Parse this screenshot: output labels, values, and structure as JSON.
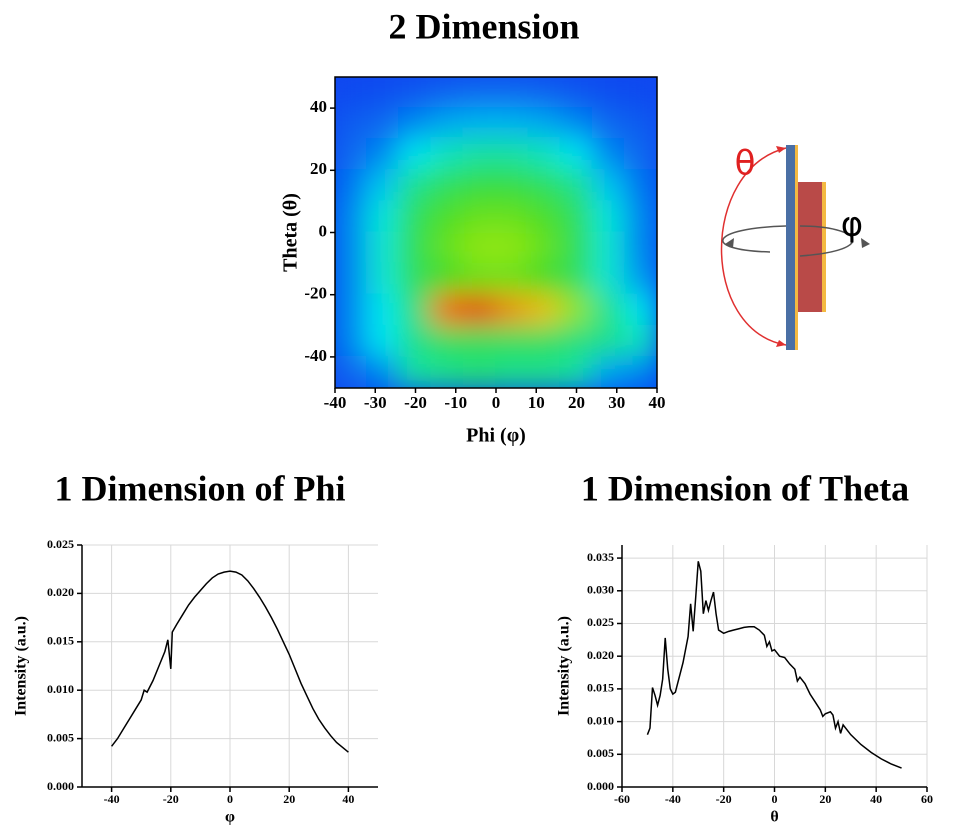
{
  "chart_data": [
    {
      "type": "heatmap",
      "title": "2 Dimension",
      "x_label": "Phi (φ)",
      "y_label": "Theta (θ)",
      "x": [
        -36,
        -28,
        -20,
        -12,
        -4,
        4,
        12,
        20,
        28,
        36
      ],
      "y": [
        45,
        35,
        25,
        15,
        5,
        -5,
        -15,
        -25,
        -35,
        -45
      ],
      "z": [
        [
          0.05,
          0.06,
          0.07,
          0.09,
          0.1,
          0.1,
          0.09,
          0.07,
          0.06,
          0.05
        ],
        [
          0.08,
          0.1,
          0.15,
          0.2,
          0.22,
          0.22,
          0.2,
          0.15,
          0.1,
          0.08
        ],
        [
          0.1,
          0.15,
          0.3,
          0.35,
          0.38,
          0.38,
          0.35,
          0.3,
          0.15,
          0.1
        ],
        [
          0.12,
          0.25,
          0.4,
          0.45,
          0.48,
          0.48,
          0.45,
          0.4,
          0.25,
          0.12
        ],
        [
          0.15,
          0.32,
          0.45,
          0.52,
          0.55,
          0.55,
          0.52,
          0.45,
          0.32,
          0.15
        ],
        [
          0.15,
          0.33,
          0.46,
          0.55,
          0.6,
          0.6,
          0.55,
          0.46,
          0.33,
          0.15
        ],
        [
          0.15,
          0.33,
          0.45,
          0.5,
          0.55,
          0.55,
          0.5,
          0.45,
          0.33,
          0.18
        ],
        [
          0.15,
          0.3,
          0.42,
          0.85,
          0.95,
          0.8,
          0.75,
          0.6,
          0.4,
          0.3
        ],
        [
          0.15,
          0.3,
          0.4,
          0.45,
          0.45,
          0.45,
          0.45,
          0.42,
          0.4,
          0.35
        ],
        [
          0.1,
          0.15,
          0.38,
          0.4,
          0.42,
          0.4,
          0.4,
          0.38,
          0.2,
          0.15
        ]
      ],
      "xlim": [
        -40,
        40
      ],
      "xticks": [
        -40,
        -30,
        -20,
        -10,
        0,
        10,
        20,
        30,
        40
      ],
      "ylim": [
        -50,
        50
      ],
      "yticks": [
        -40,
        -20,
        0,
        20,
        40
      ],
      "annotations": [
        "θ",
        "φ"
      ]
    },
    {
      "type": "line",
      "title": "1 Dimension of Phi",
      "x_label": "φ",
      "y_label": "Intensity (a.u.)",
      "color": "#000000",
      "grid": true,
      "x": [
        -40,
        -38,
        -36,
        -34,
        -32,
        -30,
        -29,
        -28,
        -26,
        -24,
        -22,
        -21,
        -20,
        -19.5,
        -18,
        -16,
        -14,
        -12,
        -10,
        -8,
        -6,
        -4,
        -2,
        0,
        2,
        4,
        6,
        8,
        10,
        12,
        14,
        16,
        18,
        20,
        22,
        24,
        26,
        28,
        30,
        32,
        34,
        36,
        38,
        40
      ],
      "values": [
        0.0042,
        0.005,
        0.006,
        0.007,
        0.008,
        0.009,
        0.01,
        0.0098,
        0.011,
        0.0125,
        0.014,
        0.0152,
        0.0122,
        0.016,
        0.0168,
        0.0178,
        0.0188,
        0.0196,
        0.0203,
        0.021,
        0.0216,
        0.022,
        0.0222,
        0.0223,
        0.0222,
        0.0219,
        0.0213,
        0.0205,
        0.0196,
        0.0186,
        0.0175,
        0.0163,
        0.015,
        0.0137,
        0.0122,
        0.0107,
        0.0094,
        0.0081,
        0.007,
        0.0061,
        0.0053,
        0.0046,
        0.0041,
        0.0036
      ],
      "xlim": [
        -50,
        50
      ],
      "xticks": [
        -40,
        -20,
        0,
        20,
        40
      ],
      "ylim": [
        0,
        0.025
      ],
      "yticks": [
        {
          "value": 0,
          "label": "0.000"
        },
        0.005,
        {
          "value": 0.01,
          "label": "0.010"
        },
        0.015,
        {
          "value": 0.02,
          "label": "0.020"
        },
        0.025
      ]
    },
    {
      "type": "line",
      "title": "1 Dimension of Theta",
      "x_label": "θ",
      "y_label": "Intensity (a.u.)",
      "color": "#000000",
      "grid": true,
      "x": [
        -50,
        -49,
        -48,
        -47,
        -46,
        -45,
        -44,
        -43,
        -42,
        -41,
        -40,
        -39,
        -38,
        -36,
        -34,
        -33,
        -32,
        -31,
        -30,
        -29,
        -28,
        -27,
        -26,
        -25,
        -24,
        -23,
        -22,
        -20,
        -18,
        -16,
        -14,
        -12,
        -10,
        -8,
        -6,
        -4,
        -3,
        -2,
        -1,
        0,
        2,
        4,
        6,
        8,
        9,
        10,
        12,
        14,
        16,
        18,
        19,
        20,
        22,
        23,
        24,
        25,
        26,
        27,
        30,
        34,
        38,
        42,
        46,
        50
      ],
      "values": [
        0.008,
        0.009,
        0.0152,
        0.014,
        0.0125,
        0.014,
        0.0165,
        0.0228,
        0.018,
        0.015,
        0.0142,
        0.0145,
        0.016,
        0.019,
        0.023,
        0.028,
        0.0238,
        0.029,
        0.0345,
        0.033,
        0.0265,
        0.0285,
        0.027,
        0.0285,
        0.0298,
        0.0265,
        0.024,
        0.0235,
        0.0238,
        0.024,
        0.0242,
        0.0244,
        0.0245,
        0.0245,
        0.024,
        0.0232,
        0.0215,
        0.0222,
        0.0208,
        0.021,
        0.02,
        0.0198,
        0.0188,
        0.018,
        0.0162,
        0.0168,
        0.0158,
        0.0142,
        0.013,
        0.0118,
        0.0108,
        0.0112,
        0.0115,
        0.011,
        0.009,
        0.01,
        0.0082,
        0.0095,
        0.008,
        0.0065,
        0.0053,
        0.0043,
        0.0035,
        0.0029
      ],
      "xlim": [
        -60,
        60
      ],
      "xticks": [
        -60,
        -40,
        -20,
        0,
        20,
        40,
        60
      ],
      "ylim": [
        0,
        0.037
      ],
      "yticks": [
        {
          "value": 0,
          "label": "0.000"
        },
        0.005,
        {
          "value": 0.01,
          "label": "0.010"
        },
        0.015,
        {
          "value": 0.02,
          "label": "0.020"
        },
        0.025,
        {
          "value": 0.03,
          "label": "0.030"
        },
        0.035
      ]
    }
  ]
}
